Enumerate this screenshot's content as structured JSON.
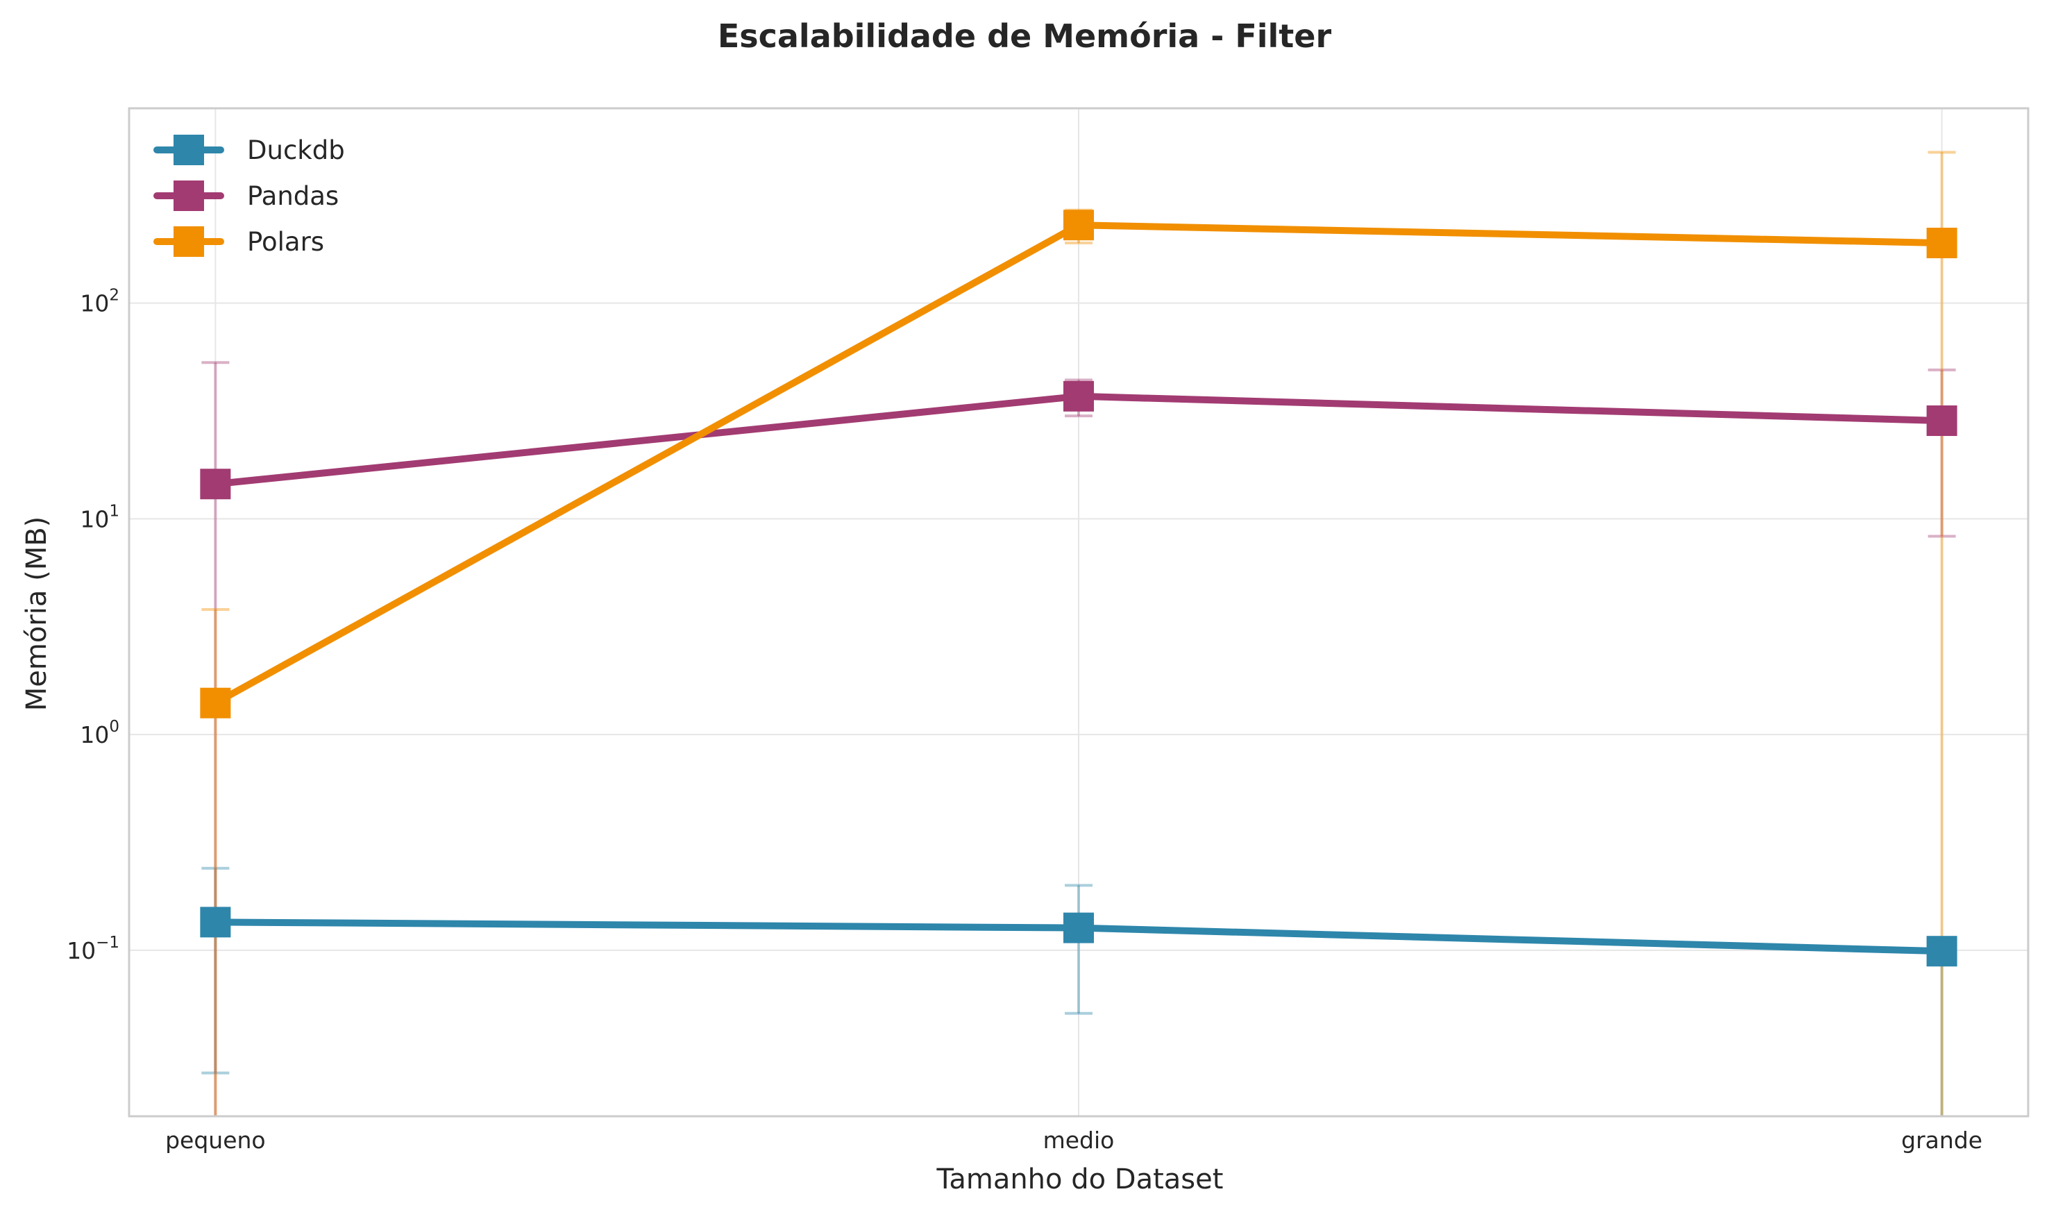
{
  "chart_data": {
    "type": "line",
    "title": "Escalabilidade de Memória - Filter",
    "xlabel": "Tamanho do Dataset",
    "ylabel": "Memória (MB)",
    "yscale": "log",
    "ylim": [
      0.017,
      800
    ],
    "grid": true,
    "legend_position": "top-left",
    "categories": [
      "pequeno",
      "medio",
      "grande"
    ],
    "y_ticks": [
      {
        "value": 0.1,
        "base": "10",
        "exp": "−1"
      },
      {
        "value": 1,
        "base": "10",
        "exp": "0"
      },
      {
        "value": 10,
        "base": "10",
        "exp": "1"
      },
      {
        "value": 100,
        "base": "10",
        "exp": "2"
      }
    ],
    "series": [
      {
        "name": "Duckdb",
        "color": "#2E86AB",
        "values": [
          0.135,
          0.127,
          0.099
        ],
        "err_low": [
          0.027,
          0.051,
          0.0
        ],
        "err_high": [
          0.24,
          0.2,
          0.0
        ]
      },
      {
        "name": "Pandas",
        "color": "#A23B72",
        "values": [
          14.5,
          37.0,
          28.5
        ],
        "err_low": [
          0.0,
          30.0,
          8.3
        ],
        "err_high": [
          53.0,
          44.0,
          49.0
        ]
      },
      {
        "name": "Polars",
        "color": "#F18F01",
        "values": [
          1.4,
          230.0,
          190.0
        ],
        "err_low": [
          0.0,
          190.0,
          0.0
        ],
        "err_high": [
          3.8,
          270.0,
          500.0
        ]
      }
    ]
  }
}
